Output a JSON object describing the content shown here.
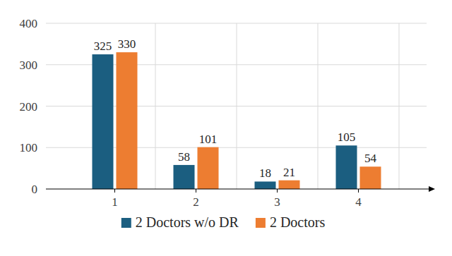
{
  "chart_data": {
    "type": "bar",
    "categories": [
      "1",
      "2",
      "3",
      "4"
    ],
    "series": [
      {
        "name": "2 Doctors w/o DR",
        "color": "#1b5e80",
        "values": [
          325,
          58,
          18,
          105
        ]
      },
      {
        "name": "2 Doctors",
        "color": "#ed7d31",
        "values": [
          330,
          101,
          21,
          54
        ]
      }
    ],
    "ylim": [
      0,
      400
    ],
    "yticks": [
      0,
      100,
      200,
      300,
      400
    ],
    "grid": true,
    "data_labels": true,
    "legend": "bottom"
  }
}
